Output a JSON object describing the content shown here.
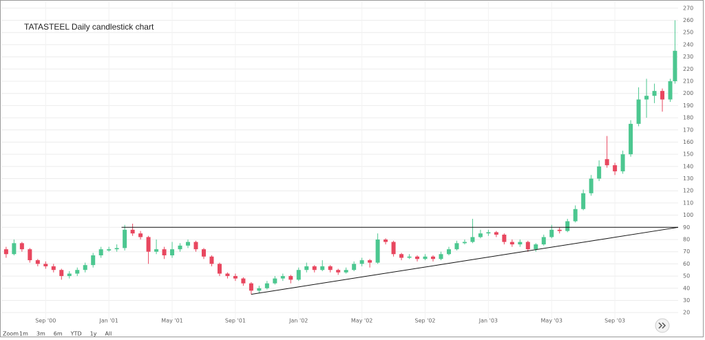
{
  "chart_data": {
    "type": "candlestick",
    "title": "TATASTEEL Daily candlestick chart",
    "up_color": "#4cc790",
    "down_color": "#e8475f",
    "grid": true,
    "xlim": [
      5.2,
      48
    ],
    "ylim": [
      15,
      275
    ],
    "xticks": [
      {
        "value": 8,
        "label": "Sep '00"
      },
      {
        "value": 12,
        "label": "Jan '01"
      },
      {
        "value": 16,
        "label": "May '01"
      },
      {
        "value": 20,
        "label": "Sep '01"
      },
      {
        "value": 24,
        "label": "Jan '02"
      },
      {
        "value": 28,
        "label": "May '02"
      },
      {
        "value": 32,
        "label": "Sep '02"
      },
      {
        "value": 36,
        "label": "Jan '03"
      },
      {
        "value": 40,
        "label": "May '03"
      },
      {
        "value": 44,
        "label": "Sep '03"
      }
    ],
    "yticks": [
      20,
      30,
      40,
      50,
      60,
      70,
      80,
      90,
      100,
      110,
      120,
      130,
      140,
      150,
      160,
      170,
      180,
      190,
      200,
      210,
      220,
      230,
      240,
      250,
      260,
      270
    ],
    "x": [
      5.5,
      6,
      6.5,
      7,
      7.5,
      8,
      8.5,
      9,
      9.5,
      10,
      10.5,
      11,
      11.5,
      12,
      12.5,
      13,
      13.5,
      14,
      14.5,
      15,
      15.5,
      16,
      16.5,
      17,
      17.5,
      18,
      18.5,
      19,
      19.5,
      20,
      20.5,
      21,
      21.5,
      22,
      22.5,
      23,
      23.5,
      24,
      24.5,
      25,
      25.5,
      26,
      26.5,
      27,
      27.5,
      28,
      28.5,
      29,
      29.5,
      30,
      30.5,
      31,
      31.5,
      32,
      32.5,
      33,
      33.5,
      34,
      34.5,
      35,
      35.5,
      36,
      36.5,
      37,
      37.5,
      38,
      38.5,
      39,
      39.5,
      40,
      40.5,
      41,
      41.5,
      42,
      42.5,
      43,
      43.5,
      44,
      44.5,
      45,
      45.5,
      46,
      46.5,
      47,
      47.5,
      47.8
    ],
    "open": [
      72,
      68,
      77,
      72,
      63,
      60,
      58,
      55,
      50,
      52,
      55,
      59,
      67,
      71,
      72,
      73,
      88,
      85,
      82,
      70,
      72,
      67,
      72,
      75,
      78,
      72,
      66,
      60,
      52,
      50,
      48,
      44,
      38,
      40,
      44,
      48,
      50,
      47,
      55,
      58,
      55,
      58,
      55,
      53,
      55,
      60,
      63,
      61,
      80,
      78,
      68,
      65,
      66,
      64,
      66,
      64,
      68,
      72,
      77,
      78,
      82,
      85,
      86,
      84,
      78,
      76,
      78,
      72,
      76,
      82,
      88,
      87,
      95,
      105,
      118,
      130,
      146,
      141,
      136,
      150,
      175,
      195,
      198,
      202,
      195,
      210
    ],
    "high": [
      74,
      80,
      78,
      73,
      64,
      62,
      60,
      56,
      54,
      57,
      61,
      69,
      74,
      74,
      76,
      92,
      93,
      87,
      83,
      80,
      74,
      78,
      77,
      80,
      79,
      73,
      67,
      61,
      53,
      52,
      49,
      45,
      42,
      46,
      50,
      52,
      51,
      57,
      61,
      59,
      63,
      59,
      56,
      57,
      62,
      65,
      64,
      85,
      81,
      79,
      69,
      68,
      67,
      68,
      67,
      70,
      74,
      79,
      80,
      97,
      88,
      88,
      87,
      85,
      80,
      80,
      79,
      77,
      84,
      92,
      90,
      97,
      108,
      121,
      133,
      145,
      165,
      143,
      153,
      178,
      205,
      212,
      208,
      204,
      212,
      260
    ],
    "low": [
      65,
      67,
      70,
      61,
      58,
      56,
      53,
      47,
      48,
      50,
      53,
      57,
      65,
      70,
      70,
      71,
      83,
      80,
      60,
      68,
      64,
      65,
      70,
      73,
      70,
      64,
      58,
      50,
      48,
      46,
      42,
      35,
      36,
      39,
      43,
      46,
      44,
      46,
      53,
      53,
      54,
      53,
      51,
      52,
      54,
      58,
      57,
      60,
      76,
      66,
      63,
      64,
      62,
      63,
      62,
      63,
      67,
      71,
      76,
      77,
      81,
      83,
      82,
      76,
      74,
      74,
      70,
      70,
      75,
      81,
      85,
      86,
      94,
      104,
      116,
      128,
      139,
      133,
      134,
      148,
      173,
      180,
      192,
      185,
      193,
      208
    ],
    "close": [
      68,
      77,
      72,
      63,
      60,
      58,
      55,
      50,
      52,
      55,
      59,
      67,
      72,
      72,
      73,
      88,
      85,
      82,
      70,
      72,
      67,
      72,
      75,
      78,
      72,
      66,
      60,
      52,
      50,
      48,
      44,
      38,
      40,
      44,
      48,
      50,
      47,
      55,
      58,
      55,
      58,
      55,
      53,
      55,
      60,
      63,
      61,
      80,
      78,
      68,
      65,
      66,
      64,
      66,
      64,
      68,
      72,
      77,
      78,
      82,
      85,
      86,
      84,
      78,
      76,
      78,
      72,
      76,
      82,
      88,
      87,
      95,
      105,
      118,
      130,
      140,
      141,
      136,
      150,
      175,
      195,
      198,
      202,
      195,
      210,
      235
    ],
    "trendlines": [
      {
        "x": [
          12.8,
          48
        ],
        "y": [
          90,
          90
        ]
      },
      {
        "x": [
          21,
          48
        ],
        "y": [
          35,
          90
        ]
      }
    ],
    "range_selector": {
      "label": "Zoom",
      "buttons": [
        "1m",
        "3m",
        "6m",
        "YTD",
        "1y",
        "All"
      ]
    }
  }
}
